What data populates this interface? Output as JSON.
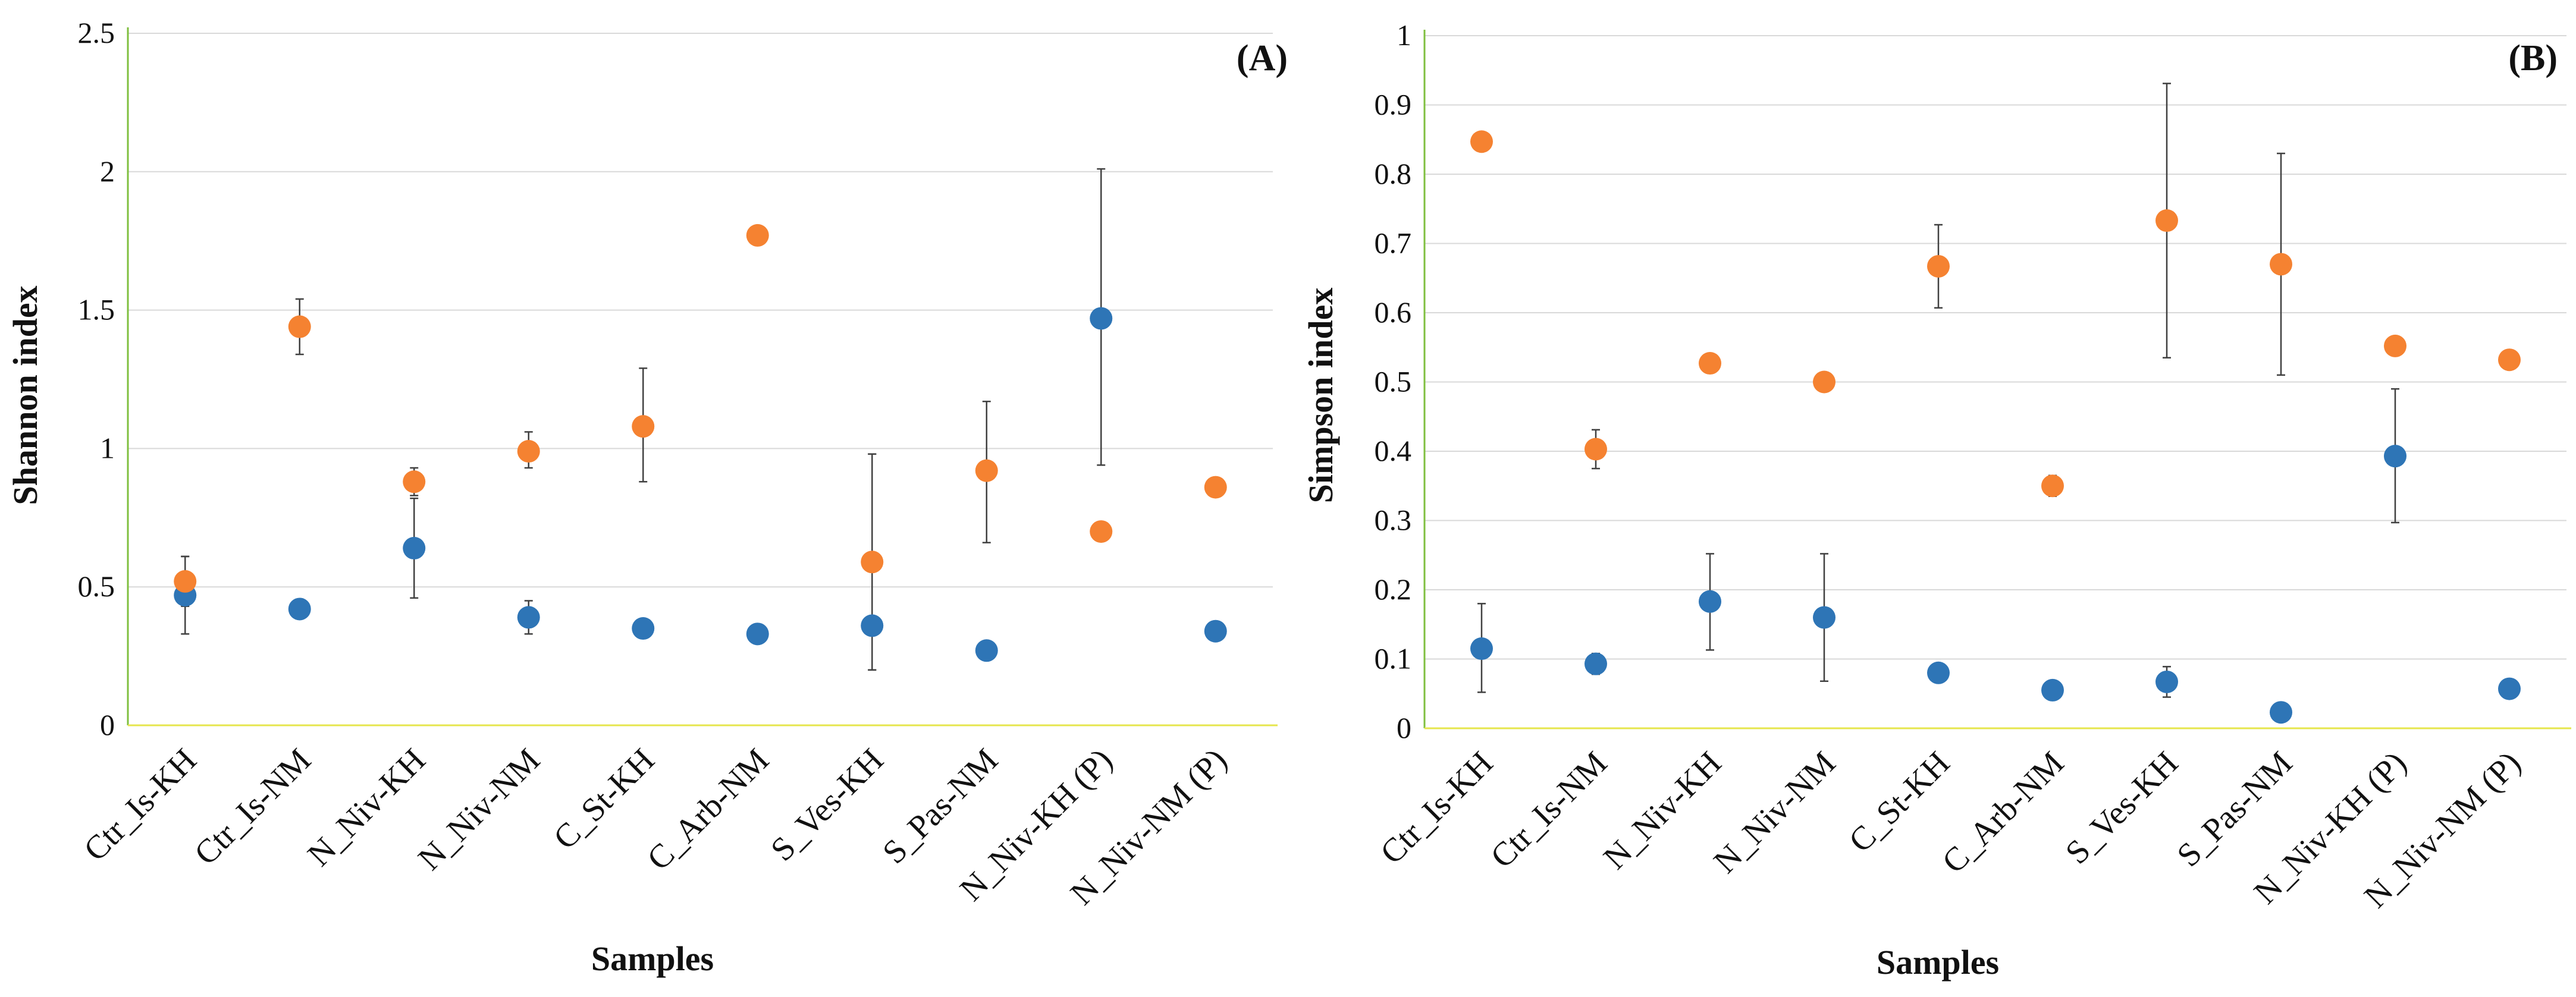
{
  "colors": {
    "series1": "#2E75B6",
    "series2": "#F58231",
    "axis_glow_v": "#92D050",
    "axis_glow_h": "#FFFF66"
  },
  "chart_data": [
    {
      "type": "scatter",
      "panel_label": "(A)",
      "ylabel": "Shannon index",
      "xlabel": "Samples",
      "ylim": [
        0,
        2.5
      ],
      "yticks": [
        "0",
        "0.5",
        "1",
        "1.5",
        "2",
        "2.5"
      ],
      "ytick_values": [
        0,
        0.5,
        1,
        1.5,
        2,
        2.5
      ],
      "categories": [
        "Ctr_Is-KH",
        "Ctr_Is-NM",
        "N_Niv-KH",
        "N_Niv-NM",
        "C_St-KH",
        "C_Arb-NM",
        "S_Ves-KH",
        "S_Pas-NM",
        "N_Niv-KH (P)",
        "N_Niv-NM (P)"
      ],
      "series": [
        {
          "name": "blue",
          "values": [
            0.47,
            0.42,
            0.64,
            0.39,
            0.35,
            0.33,
            0.36,
            0.27,
            1.47,
            0.34
          ],
          "err_low": [
            0.33,
            null,
            0.46,
            0.33,
            null,
            null,
            0.2,
            null,
            0.94,
            null
          ],
          "err_high": [
            0.61,
            null,
            0.82,
            0.45,
            null,
            null,
            0.98,
            null,
            2.01,
            null
          ]
        },
        {
          "name": "orange",
          "values": [
            0.52,
            1.44,
            0.88,
            0.99,
            1.08,
            1.77,
            0.59,
            0.92,
            0.7,
            0.86
          ],
          "err_low": [
            0.43,
            1.34,
            0.83,
            0.93,
            0.88,
            null,
            0.2,
            0.66,
            null,
            null
          ],
          "err_high": [
            0.61,
            1.54,
            0.93,
            1.06,
            1.29,
            null,
            0.98,
            1.17,
            null,
            null
          ]
        }
      ]
    },
    {
      "type": "scatter",
      "panel_label": "(B)",
      "ylabel": "Simpson index",
      "xlabel": "Samples",
      "ylim": [
        0,
        1
      ],
      "yticks": [
        "0",
        "0.1",
        "0.2",
        "0.3",
        "0.4",
        "0.5",
        "0.6",
        "0.7",
        "0.8",
        "0.9",
        "1"
      ],
      "ytick_values": [
        0,
        0.1,
        0.2,
        0.3,
        0.4,
        0.5,
        0.6,
        0.7,
        0.8,
        0.9,
        1
      ],
      "categories": [
        "Ctr_Is-KH",
        "Ctr_Is-NM",
        "N_Niv-KH",
        "N_Niv-NM",
        "C_St-KH",
        "C_Arb-NM",
        "S_Ves-KH",
        "S_Pas-NM",
        "N_Niv-KH (P)",
        "N_Niv-NM (P)"
      ],
      "series": [
        {
          "name": "blue",
          "values": [
            0.115,
            0.093,
            0.183,
            0.16,
            0.08,
            0.055,
            0.067,
            0.023,
            0.393,
            0.057
          ],
          "err_low": [
            0.052,
            0.078,
            0.113,
            0.068,
            null,
            null,
            0.045,
            null,
            0.297,
            null
          ],
          "err_high": [
            0.18,
            0.108,
            0.252,
            0.252,
            null,
            null,
            0.089,
            null,
            0.49,
            null
          ]
        },
        {
          "name": "orange",
          "values": [
            0.847,
            0.403,
            0.527,
            0.5,
            0.667,
            0.35,
            0.733,
            0.67,
            0.552,
            0.532
          ],
          "err_low": [
            null,
            0.375,
            null,
            null,
            0.607,
            0.335,
            0.535,
            0.51,
            null,
            null
          ],
          "err_high": [
            null,
            0.431,
            null,
            null,
            0.727,
            0.365,
            0.931,
            0.83,
            null,
            null
          ]
        }
      ]
    }
  ]
}
